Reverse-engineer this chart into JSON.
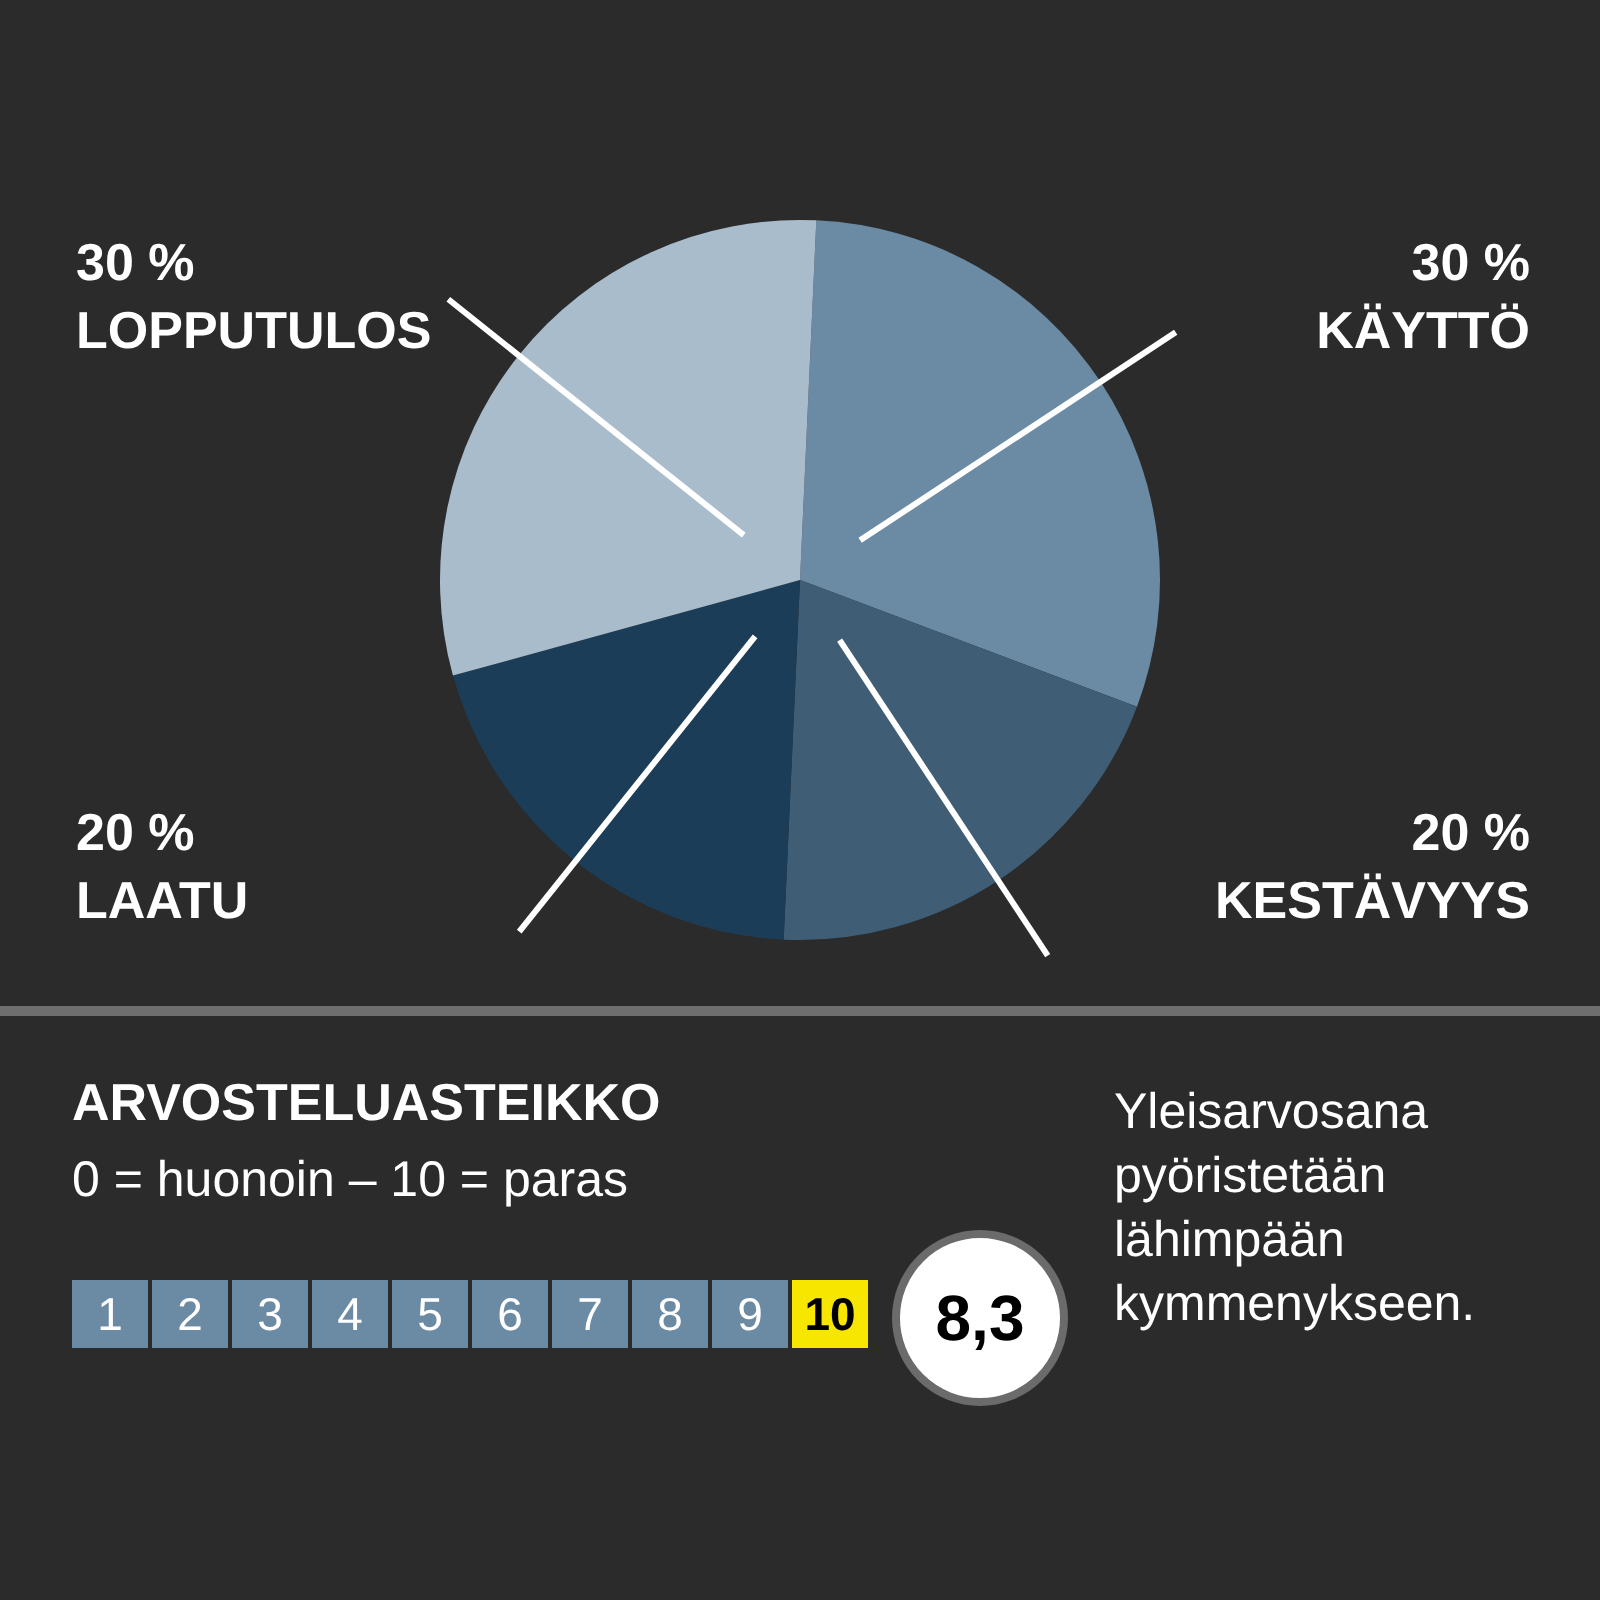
{
  "chart_data": {
    "type": "pie",
    "categories": [
      "KÄYTTÖ",
      "KESTÄVYYS",
      "LAATU",
      "LOPPUTULOS"
    ],
    "values": [
      30,
      20,
      20,
      30
    ],
    "colors": [
      "#6b8aa3",
      "#3f5d75",
      "#1c3d57",
      "#a9bccc"
    ],
    "value_labels": [
      "30 %",
      "20 %",
      "20 %",
      "30 %"
    ],
    "legend": false,
    "annotations": [
      "ARVOSTELUASTEIKKO",
      "0 = huonoin – 10 = paras",
      "1",
      "2",
      "3",
      "4",
      "5",
      "6",
      "7",
      "8",
      "9",
      "10",
      "8,3",
      "Yleisarvosana pyöristetään lähimpään kymmenykseen."
    ]
  }
}
